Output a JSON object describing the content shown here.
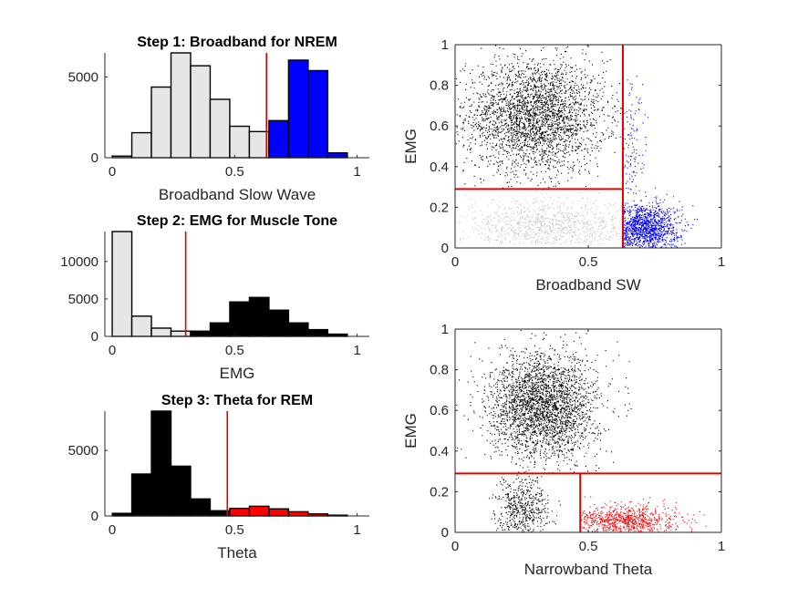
{
  "chart_data": [
    {
      "type": "bar",
      "id": "hist-nrem",
      "title": "Step 1: Broadband for NREM",
      "xlabel": "Broadband Slow Wave",
      "ylabel": "",
      "xlim": [
        -0.03,
        1.05
      ],
      "ylim": [
        0,
        6500
      ],
      "xticks": [
        0,
        0.5,
        1
      ],
      "xtick_labels": [
        "0",
        "0.5",
        "1"
      ],
      "yticks": [
        0,
        5000
      ],
      "ytick_labels": [
        "0",
        "5000"
      ],
      "bin_width": 0.08,
      "threshold": 0.63,
      "series": [
        {
          "color": "#e6e6e6",
          "x": [
            0.04,
            0.12,
            0.2,
            0.28,
            0.36,
            0.44,
            0.52,
            0.6
          ],
          "values": [
            100,
            1550,
            4380,
            6520,
            5700,
            3620,
            1950,
            1620
          ]
        },
        {
          "color": "#0000ff",
          "x": [
            0.68,
            0.76,
            0.84,
            0.92
          ],
          "values": [
            2300,
            6050,
            5400,
            300
          ]
        }
      ]
    },
    {
      "type": "bar",
      "id": "hist-emg",
      "title": "Step 2: EMG for Muscle Tone",
      "xlabel": "EMG",
      "ylabel": "",
      "xlim": [
        -0.03,
        1.05
      ],
      "ylim": [
        0,
        14000
      ],
      "xticks": [
        0,
        0.5,
        1
      ],
      "xtick_labels": [
        "0",
        "0.5",
        "1"
      ],
      "yticks": [
        0,
        5000,
        10000
      ],
      "ytick_labels": [
        "0",
        "5000",
        "10000"
      ],
      "bin_width": 0.08,
      "threshold": 0.3,
      "series": [
        {
          "color": "#e6e6e6",
          "x": [
            0.04,
            0.12,
            0.2,
            0.28
          ],
          "values": [
            14000,
            2700,
            1100,
            700
          ]
        },
        {
          "color": "#000000",
          "x": [
            0.36,
            0.44,
            0.52,
            0.6,
            0.68,
            0.76,
            0.84,
            0.92
          ],
          "values": [
            700,
            1800,
            4600,
            5200,
            3500,
            1800,
            900,
            300
          ]
        }
      ]
    },
    {
      "type": "bar",
      "id": "hist-rem",
      "title": "Step 3: Theta for REM",
      "xlabel": "Theta",
      "ylabel": "",
      "xlim": [
        -0.03,
        1.05
      ],
      "ylim": [
        0,
        8000
      ],
      "xticks": [
        0,
        0.5,
        1
      ],
      "xtick_labels": [
        "0",
        "0.5",
        "1"
      ],
      "yticks": [
        0,
        5000
      ],
      "ytick_labels": [
        "0",
        "5000"
      ],
      "bin_width": 0.08,
      "threshold": 0.47,
      "series": [
        {
          "color": "#000000",
          "x": [
            0.04,
            0.12,
            0.2,
            0.28,
            0.36,
            0.44
          ],
          "values": [
            200,
            3200,
            8000,
            3800,
            1300,
            400
          ]
        },
        {
          "color": "#ff0000",
          "x": [
            0.52,
            0.6,
            0.68,
            0.76,
            0.84,
            0.92
          ],
          "values": [
            580,
            740,
            540,
            320,
            160,
            60
          ]
        }
      ]
    },
    {
      "type": "scatter",
      "id": "scatter-sw",
      "title": "",
      "xlabel": "Broadband SW",
      "ylabel": "EMG",
      "xlim": [
        0,
        1
      ],
      "ylim": [
        0,
        1
      ],
      "xticks": [
        0,
        0.5,
        1
      ],
      "xtick_labels": [
        "0",
        "0.5",
        "1"
      ],
      "yticks": [
        0,
        0.2,
        0.4,
        0.6,
        0.8,
        1
      ],
      "ytick_labels": [
        "0",
        "0.2",
        "0.4",
        "0.6",
        "0.8",
        "1"
      ],
      "threshold_lines": [
        {
          "orientation": "vertical",
          "value": 0.63,
          "from": 0,
          "to": 1
        },
        {
          "orientation": "horizontal",
          "value": 0.29,
          "from": 0,
          "to": 0.63
        }
      ],
      "series": [
        {
          "color": "#000000",
          "clusters": [
            {
              "cx": 0.3,
              "cy": 0.65,
              "sx": 0.13,
              "sy": 0.14,
              "n": 2800,
              "xmin": 0,
              "xmax": 0.63,
              "ymin": 0.29,
              "ymax": 1
            }
          ]
        },
        {
          "color": "#c8c8c8",
          "clusters": [
            {
              "cx": 0.35,
              "cy": 0.1,
              "sx": 0.16,
              "sy": 0.07,
              "n": 1000,
              "xmin": 0,
              "xmax": 0.63,
              "ymin": 0.02,
              "ymax": 0.29
            }
          ]
        },
        {
          "color": "#0000ff",
          "clusters": [
            {
              "cx": 0.7,
              "cy": 0.1,
              "sx": 0.07,
              "sy": 0.06,
              "n": 1200,
              "xmin": 0.63,
              "xmax": 1,
              "ymin": 0,
              "ymax": 0.85
            },
            {
              "cx": 0.66,
              "cy": 0.48,
              "sx": 0.03,
              "sy": 0.2,
              "n": 120,
              "xmin": 0.63,
              "xmax": 0.75,
              "ymin": 0.2,
              "ymax": 0.85
            }
          ]
        }
      ]
    },
    {
      "type": "scatter",
      "id": "scatter-theta",
      "title": "",
      "xlabel": "Narrowband Theta",
      "ylabel": "EMG",
      "xlim": [
        0,
        1
      ],
      "ylim": [
        0,
        1
      ],
      "xticks": [
        0,
        0.5,
        1
      ],
      "xtick_labels": [
        "0",
        "0.5",
        "1"
      ],
      "yticks": [
        0,
        0.2,
        0.4,
        0.6,
        0.8,
        1
      ],
      "ytick_labels": [
        "0",
        "0.2",
        "0.4",
        "0.6",
        "0.8",
        "1"
      ],
      "threshold_lines": [
        {
          "orientation": "horizontal",
          "value": 0.29,
          "from": 0,
          "to": 1
        },
        {
          "orientation": "vertical",
          "value": 0.47,
          "from": 0,
          "to": 0.29
        }
      ],
      "series": [
        {
          "color": "#000000",
          "clusters": [
            {
              "cx": 0.33,
              "cy": 0.62,
              "sx": 0.1,
              "sy": 0.13,
              "n": 2800,
              "xmin": 0,
              "xmax": 1,
              "ymin": 0.29,
              "ymax": 1
            },
            {
              "cx": 0.25,
              "cy": 0.12,
              "sx": 0.05,
              "sy": 0.08,
              "n": 500,
              "xmin": 0,
              "xmax": 0.47,
              "ymin": 0,
              "ymax": 0.29
            }
          ]
        },
        {
          "color": "#ff0000",
          "clusters": [
            {
              "cx": 0.64,
              "cy": 0.06,
              "sx": 0.1,
              "sy": 0.04,
              "n": 800,
              "xmin": 0.47,
              "xmax": 1,
              "ymin": 0,
              "ymax": 0.29
            }
          ]
        }
      ]
    }
  ]
}
